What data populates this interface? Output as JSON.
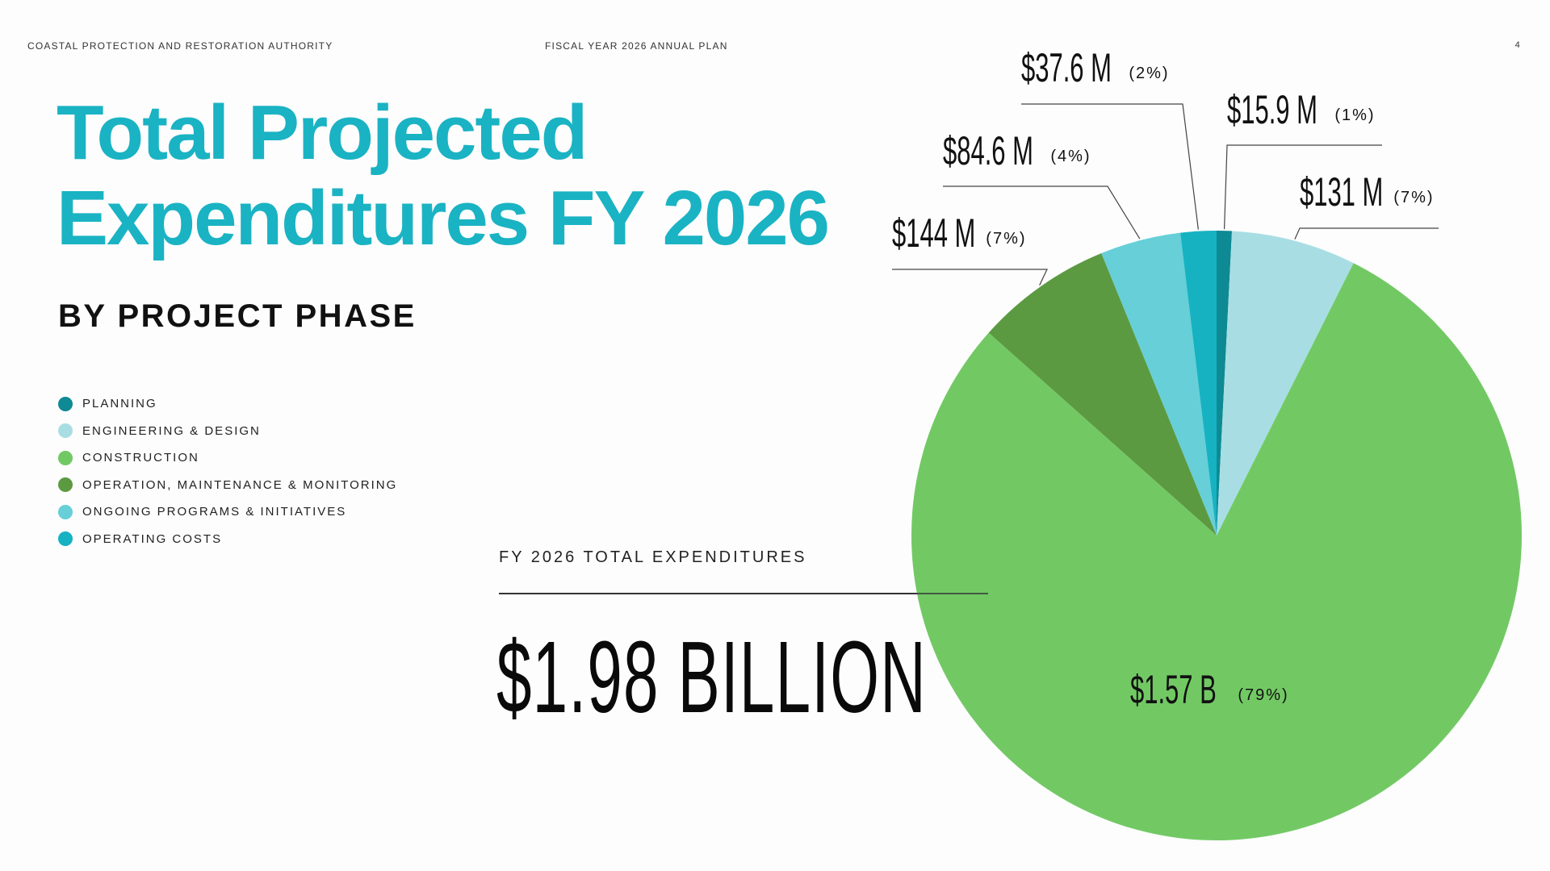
{
  "header": {
    "left": "COASTAL PROTECTION AND RESTORATION AUTHORITY",
    "center": "FISCAL YEAR 2026 ANNUAL PLAN",
    "page": "4"
  },
  "title_line1": "Total Projected",
  "title_line2": "Expenditures FY 2026",
  "subtitle": "BY PROJECT PHASE",
  "total": {
    "label": "FY 2026 TOTAL EXPENDITURES",
    "value": "$1.98 BILLION"
  },
  "chart_data": {
    "type": "pie",
    "title": "Total Projected Expenditures FY 2026",
    "subtitle": "BY PROJECT PHASE",
    "slices": [
      {
        "name": "PLANNING",
        "value": 15.9,
        "display": "$15.9 M",
        "pct": "(1%)",
        "color": "#0e8a94"
      },
      {
        "name": "ENGINEERING & DESIGN",
        "value": 131,
        "display": "$131 M",
        "pct": "(7%)",
        "color": "#a8dee3"
      },
      {
        "name": "CONSTRUCTION",
        "value": 1570,
        "display": "$1.57 B",
        "pct": "(79%)",
        "color": "#72c964"
      },
      {
        "name": "OPERATION, MAINTENANCE & MONITORING",
        "value": 144,
        "display": "$144 M",
        "pct": "(7%)",
        "color": "#5c9a42"
      },
      {
        "name": "ONGOING PROGRAMS & INITIATIVES",
        "value": 84.6,
        "display": "$84.6 M",
        "pct": "(4%)",
        "color": "#66cfd7"
      },
      {
        "name": "OPERATING COSTS",
        "value": 37.6,
        "display": "$37.6 M",
        "pct": "(2%)",
        "color": "#16b2c2"
      }
    ],
    "legend_position": "left"
  }
}
